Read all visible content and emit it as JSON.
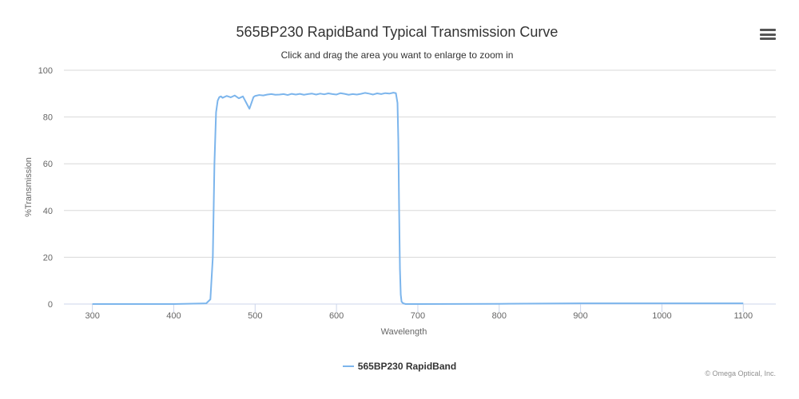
{
  "title": "565BP230 RapidBand Typical Transmission Curve",
  "subtitle": "Click and drag the area you want to enlarge to zoom in",
  "credits": "© Omega Optical, Inc.",
  "colors": {
    "series": "#7cb5ec",
    "grid": "#d8d8d8",
    "axis_line": "#ccd6eb",
    "text": "#333333",
    "tick_text": "#666666"
  },
  "icons": {
    "menu": "hamburger-menu-icon"
  },
  "chart_data": {
    "type": "line",
    "title": "565BP230 RapidBand Typical Transmission Curve",
    "subtitle": "Click and drag the area you want to enlarge to zoom in",
    "xlabel": "Wavelength",
    "ylabel": "%Transmission",
    "xlim": [
      265,
      1140
    ],
    "ylim": [
      0,
      100
    ],
    "xticks": [
      300,
      400,
      500,
      600,
      700,
      800,
      900,
      1000,
      1100
    ],
    "yticks": [
      0,
      20,
      40,
      60,
      80,
      100
    ],
    "grid": true,
    "legend_position": "bottom-center",
    "series": [
      {
        "name": "565BP230 RapidBand",
        "color": "#7cb5ec",
        "x": [
          300,
          400,
          440,
          445,
          448,
          450,
          452,
          454,
          456,
          458,
          460,
          465,
          470,
          475,
          480,
          485,
          490,
          493,
          496,
          498,
          500,
          505,
          510,
          515,
          520,
          525,
          530,
          535,
          540,
          545,
          550,
          555,
          560,
          565,
          570,
          575,
          580,
          585,
          590,
          595,
          600,
          605,
          610,
          615,
          620,
          625,
          630,
          635,
          640,
          645,
          650,
          655,
          660,
          665,
          670,
          673,
          675,
          676,
          677,
          678,
          679,
          680,
          682,
          685,
          690,
          700,
          800,
          900,
          1000,
          1100
        ],
        "y": [
          0,
          0,
          0.3,
          2,
          20,
          60,
          82,
          87,
          88.5,
          88.8,
          88.2,
          89.0,
          88.4,
          89.2,
          88.0,
          88.8,
          85.5,
          83.5,
          86.5,
          88.5,
          89.0,
          89.4,
          89.2,
          89.6,
          89.8,
          89.5,
          89.6,
          89.8,
          89.4,
          89.9,
          89.6,
          89.9,
          89.5,
          89.8,
          90.0,
          89.6,
          90.0,
          89.7,
          90.1,
          89.8,
          89.6,
          90.2,
          89.9,
          89.5,
          89.8,
          89.6,
          89.9,
          90.3,
          90.0,
          89.6,
          90.1,
          89.8,
          90.2,
          90.0,
          90.4,
          90.2,
          86,
          70,
          40,
          15,
          4,
          1,
          0.3,
          0,
          0,
          0,
          0.1,
          0.3,
          0.3,
          0.3
        ]
      }
    ]
  }
}
